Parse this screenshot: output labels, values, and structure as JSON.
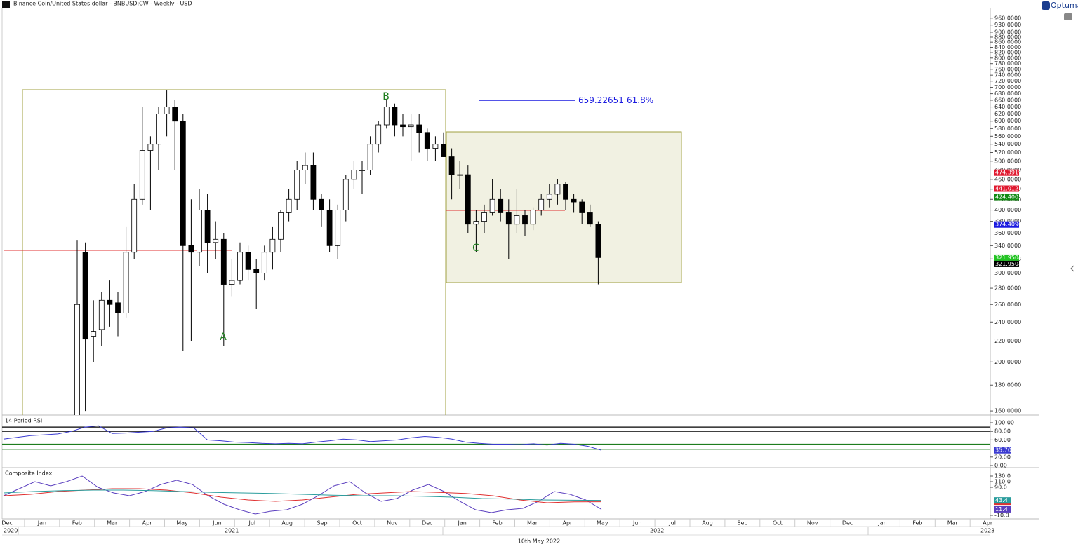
{
  "header": {
    "title": "Binance Coin/United States dollar - BNBUSD:CW - Weekly - USD",
    "brand": "Optuma"
  },
  "footer": {
    "date": "10th May 2022"
  },
  "chart_data": [
    {
      "type": "candlestick",
      "log_scale": true,
      "ylim": [
        157,
        1000
      ],
      "yticks": [
        {
          "value": 160,
          "label": "160.0000"
        },
        {
          "value": 180,
          "label": "180.0000"
        },
        {
          "value": 200,
          "label": "200.0000"
        },
        {
          "value": 220,
          "label": "220.0000"
        },
        {
          "value": 240,
          "label": "240.0000"
        },
        {
          "value": 260,
          "label": "260.0000"
        },
        {
          "value": 280,
          "label": "280.0000"
        },
        {
          "value": 300,
          "label": "300.0000"
        },
        {
          "value": 320,
          "label": "320.0000"
        },
        {
          "value": 340,
          "label": "340.0000"
        },
        {
          "value": 360,
          "label": "360.0000"
        },
        {
          "value": 380,
          "label": "380.0000"
        },
        {
          "value": 400,
          "label": "400.0000"
        },
        {
          "value": 420,
          "label": "420.0000"
        },
        {
          "value": 440,
          "label": "440.0000"
        },
        {
          "value": 460,
          "label": "460.0000"
        },
        {
          "value": 480,
          "label": "480.0000"
        },
        {
          "value": 500,
          "label": "500.0000"
        },
        {
          "value": 520,
          "label": "520.0000"
        },
        {
          "value": 540,
          "label": "540.0000"
        },
        {
          "value": 560,
          "label": "560.0000"
        },
        {
          "value": 580,
          "label": "580.0000"
        },
        {
          "value": 600,
          "label": "600.0000"
        },
        {
          "value": 620,
          "label": "620.0000"
        },
        {
          "value": 640,
          "label": "640.0000"
        },
        {
          "value": 660,
          "label": "660.0000"
        },
        {
          "value": 680,
          "label": "680.0000"
        },
        {
          "value": 700,
          "label": "700.0000"
        },
        {
          "value": 720,
          "label": "720.0000"
        },
        {
          "value": 740,
          "label": "740.0000"
        },
        {
          "value": 760,
          "label": "760.0000"
        },
        {
          "value": 780,
          "label": "780.0000"
        },
        {
          "value": 800,
          "label": "800.0000"
        },
        {
          "value": 820,
          "label": "820.0000"
        },
        {
          "value": 840,
          "label": "840.0000"
        },
        {
          "value": 860,
          "label": "860.0000"
        },
        {
          "value": 880,
          "label": "880.0000"
        },
        {
          "value": 900,
          "label": "900.0000"
        },
        {
          "value": 930,
          "label": "930.0000"
        },
        {
          "value": 960,
          "label": "960.0000"
        }
      ],
      "open": [
        130,
        330,
        225,
        232,
        265,
        262,
        250,
        330,
        420,
        525,
        540,
        620,
        640,
        600,
        340,
        330,
        400,
        345,
        350,
        285,
        290,
        330,
        305,
        300,
        330,
        350,
        395,
        420,
        480,
        490,
        420,
        400,
        340,
        400,
        460,
        480,
        480,
        540,
        590,
        640,
        590,
        585,
        590,
        570,
        530,
        540,
        510,
        470,
        470,
        375,
        380,
        395,
        420,
        395,
        375,
        390,
        375,
        400,
        420,
        430,
        450,
        420,
        415,
        395,
        375
      ],
      "high": [
        348,
        345,
        265,
        275,
        290,
        275,
        370,
        450,
        640,
        560,
        640,
        690,
        660,
        620,
        420,
        440,
        430,
        380,
        360,
        320,
        345,
        340,
        320,
        340,
        370,
        400,
        440,
        500,
        520,
        520,
        430,
        420,
        410,
        470,
        500,
        500,
        560,
        600,
        660,
        650,
        620,
        620,
        620,
        580,
        560,
        570,
        530,
        500,
        490,
        400,
        410,
        460,
        440,
        420,
        440,
        400,
        405,
        430,
        450,
        460,
        455,
        430,
        420,
        410,
        380
      ],
      "low": [
        120,
        160,
        200,
        215,
        235,
        225,
        245,
        320,
        410,
        400,
        480,
        560,
        480,
        210,
        220,
        310,
        300,
        320,
        215,
        270,
        285,
        290,
        255,
        290,
        305,
        330,
        380,
        400,
        450,
        400,
        370,
        330,
        320,
        380,
        440,
        430,
        470,
        520,
        580,
        560,
        560,
        500,
        520,
        500,
        500,
        510,
        420,
        440,
        360,
        330,
        360,
        390,
        380,
        320,
        360,
        355,
        365,
        390,
        405,
        410,
        400,
        395,
        375,
        370,
        285
      ],
      "close": [
        260,
        222,
        230,
        265,
        260,
        250,
        330,
        420,
        525,
        540,
        620,
        640,
        600,
        340,
        330,
        400,
        345,
        350,
        285,
        290,
        330,
        305,
        300,
        330,
        350,
        395,
        420,
        480,
        490,
        420,
        400,
        340,
        400,
        460,
        480,
        480,
        540,
        590,
        640,
        590,
        585,
        590,
        570,
        530,
        540,
        510,
        470,
        470,
        375,
        380,
        395,
        420,
        395,
        375,
        390,
        375,
        400,
        420,
        430,
        450,
        420,
        415,
        395,
        375,
        322
      ],
      "up_color": "#ffffff",
      "down_color": "#000000",
      "xticks": [
        "Dec",
        "Jan",
        "Feb",
        "Mar",
        "Apr",
        "May",
        "Jun",
        "Jul",
        "Aug",
        "Sep",
        "Oct",
        "Nov",
        "Dec",
        "Jan",
        "Feb",
        "Mar",
        "Apr",
        "May",
        "Jun",
        "Jul",
        "Aug",
        "Sep",
        "Oct",
        "Nov",
        "Dec",
        "Jan",
        "Feb",
        "Mar",
        "Apr"
      ],
      "years": [
        "2020",
        "2021",
        "2022",
        "2023"
      ],
      "annotations": [
        "A",
        "B",
        "C"
      ],
      "fib": {
        "value": 659.22651,
        "label": "659.22651",
        "ratio": "61.8%",
        "color": "#1a1ae0"
      },
      "price_markers": [
        {
          "value": 474.3919,
          "label": "474.3919",
          "color": "#e0192f"
        },
        {
          "value": 441.0121,
          "label": "441.0121",
          "color": "#e0192f"
        },
        {
          "value": 424.4005,
          "label": "424.4005",
          "color": "#138a13"
        },
        {
          "value": 374.409,
          "label": "374.4090",
          "color": "#1a1ae0"
        },
        {
          "value": 321.9504,
          "label": "321.9504",
          "color": "#22c322"
        },
        {
          "value": 321.9504,
          "label": "321.9504",
          "color": "#000000"
        }
      ]
    },
    {
      "type": "line",
      "title": "14 Period RSI",
      "ylim": [
        0,
        100
      ],
      "yticks": [
        {
          "value": 0,
          "label": "0.00"
        },
        {
          "value": 20,
          "label": "20.00"
        },
        {
          "value": 60,
          "label": "60.00"
        },
        {
          "value": 80,
          "label": "80.00"
        },
        {
          "value": 100,
          "label": "100.00"
        }
      ],
      "levels": [
        {
          "value": 90,
          "color": "#000000"
        },
        {
          "value": 80,
          "color": "#000000"
        },
        {
          "value": 50,
          "color": "#1e7d1e"
        },
        {
          "value": 38,
          "color": "#1e7d1e"
        }
      ],
      "series": [
        {
          "color": "#3b3bd1",
          "last_label": "35.70",
          "values": [
            62,
            66,
            70,
            72,
            74,
            80,
            90,
            93,
            75,
            76,
            78,
            80,
            88,
            90,
            88,
            60,
            58,
            55,
            54,
            52,
            51,
            52,
            51,
            55,
            58,
            62,
            60,
            56,
            58,
            60,
            65,
            68,
            66,
            62,
            55,
            52,
            50,
            50,
            49,
            51,
            48,
            52,
            50,
            45,
            35.7
          ]
        }
      ]
    },
    {
      "type": "line",
      "title": "Composite Index",
      "ylim": [
        -10,
        130
      ],
      "yticks": [
        {
          "value": -10,
          "label": "-10.0"
        },
        {
          "value": 90,
          "label": "90.0"
        },
        {
          "value": 110,
          "label": "110.0"
        },
        {
          "value": 130,
          "label": "130.0"
        }
      ],
      "series": [
        {
          "color": "#5b3fbf",
          "values": [
            60,
            85,
            110,
            95,
            110,
            130,
            90,
            70,
            60,
            75,
            100,
            115,
            100,
            60,
            30,
            10,
            -5,
            5,
            10,
            30,
            60,
            95,
            110,
            70,
            40,
            50,
            80,
            100,
            75,
            40,
            10,
            0,
            10,
            15,
            40,
            75,
            65,
            45,
            11.4
          ]
        },
        {
          "color": "#e03030",
          "values": [
            60,
            65,
            75,
            80,
            85,
            85,
            80,
            70,
            55,
            45,
            40,
            45,
            55,
            65,
            70,
            75,
            72,
            68,
            60,
            45,
            35,
            38,
            38.4
          ]
        },
        {
          "color": "#2a9d9d",
          "values": [
            70,
            75,
            78,
            80,
            80,
            78,
            75,
            72,
            70,
            68,
            65,
            62,
            60,
            60,
            58,
            55,
            50,
            48,
            45,
            44,
            43.4
          ]
        }
      ]
    }
  ]
}
